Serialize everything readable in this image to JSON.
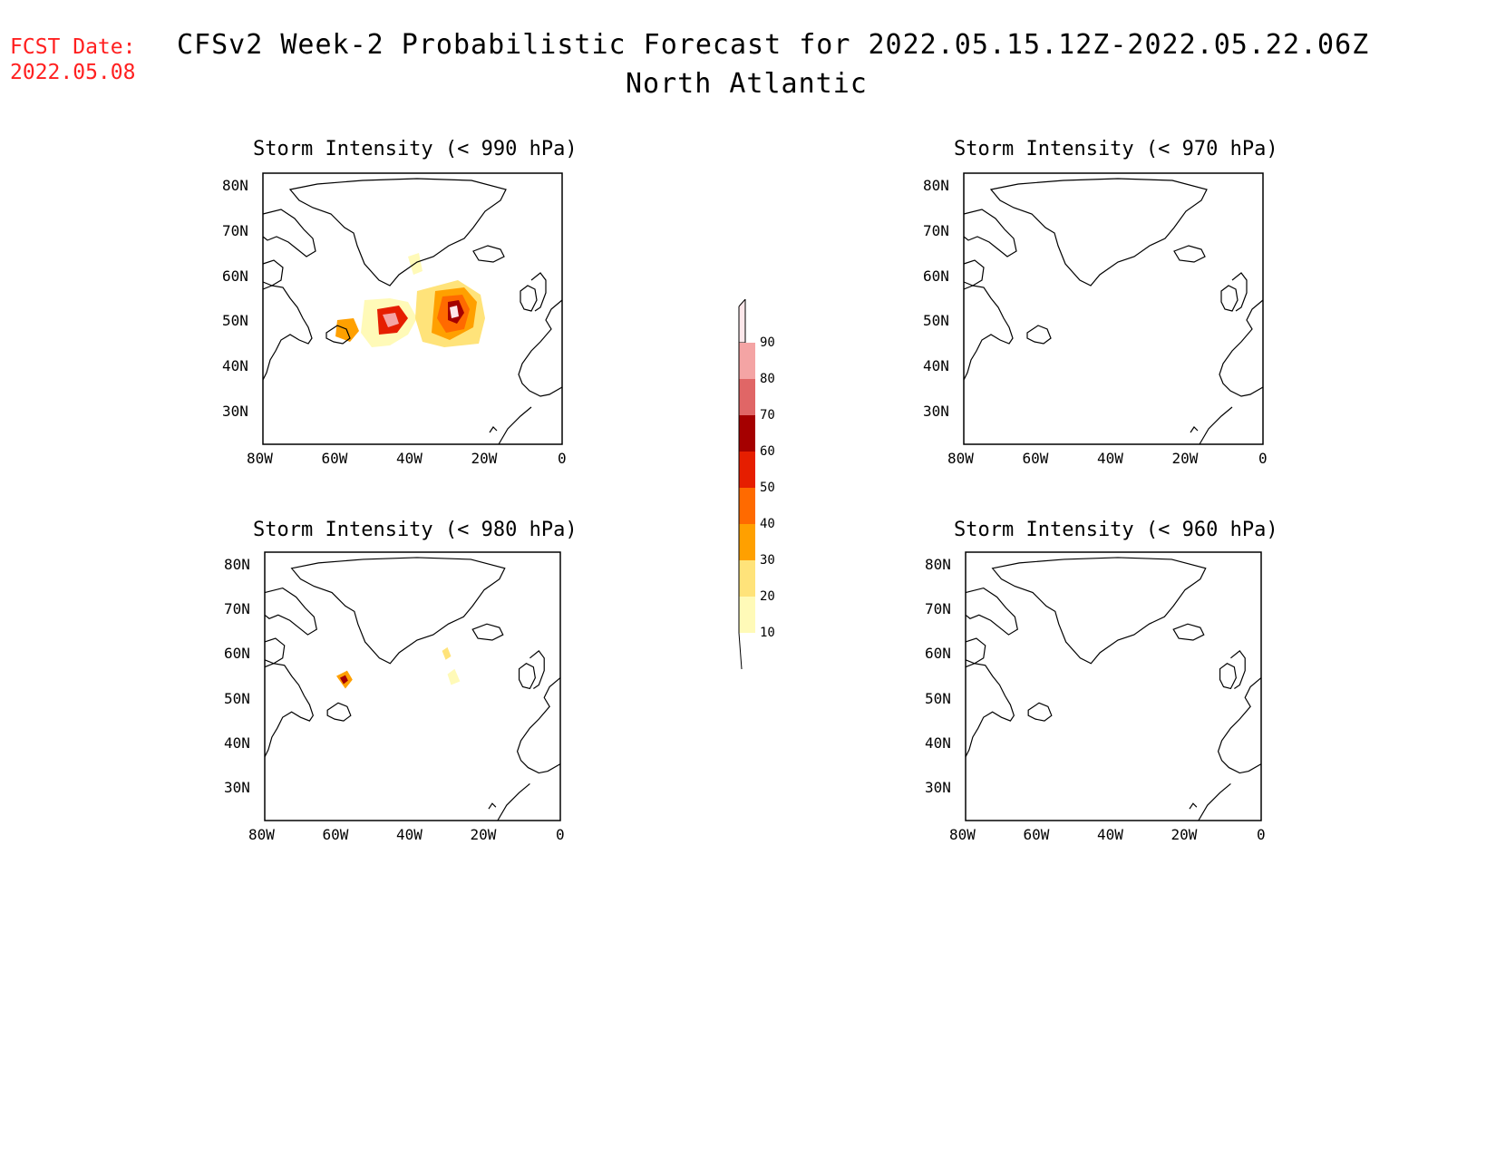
{
  "header": {
    "fcst_label": "FCST Date:",
    "fcst_date": "2022.05.08",
    "title": "CFSv2 Week-2 Probabilistic Forecast for 2022.05.15.12Z-2022.05.22.06Z",
    "subtitle": "North Atlantic"
  },
  "axes": {
    "lon_ticks": [
      "80W",
      "60W",
      "40W",
      "20W",
      "0"
    ],
    "lat_ticks": [
      "80N",
      "70N",
      "60N",
      "50N",
      "40N",
      "30N"
    ]
  },
  "panels": [
    {
      "id": "p990",
      "title": "Storm Intensity (< 990 hPa)"
    },
    {
      "id": "p970",
      "title": "Storm Intensity (< 970 hPa)"
    },
    {
      "id": "p980",
      "title": "Storm Intensity (< 980 hPa)"
    },
    {
      "id": "p960",
      "title": "Storm Intensity (< 960 hPa)"
    }
  ],
  "colorbar": {
    "levels": [
      "90",
      "80",
      "70",
      "60",
      "50",
      "40",
      "30",
      "20",
      "10"
    ],
    "colors": [
      "#fde7ea",
      "#f4a4a4",
      "#e06666",
      "#a50000",
      "#e61e00",
      "#ff6a00",
      "#ffa000",
      "#ffe37a",
      "#fffab8"
    ]
  }
}
